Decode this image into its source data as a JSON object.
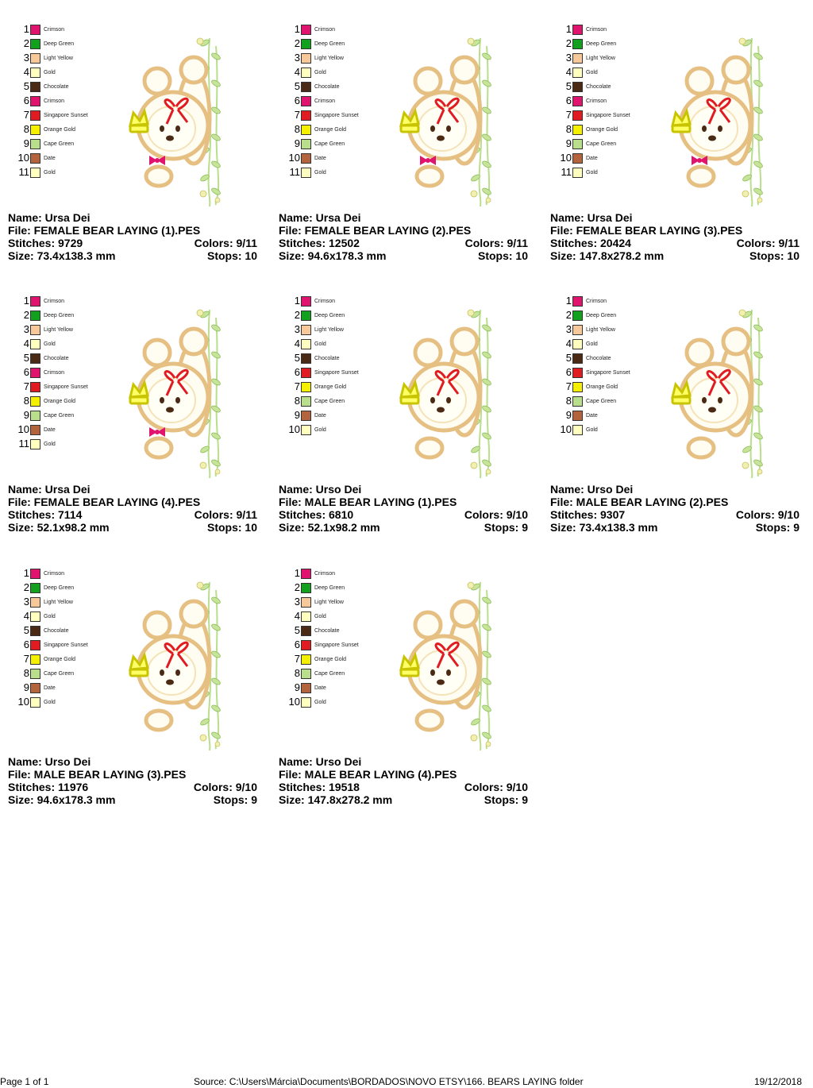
{
  "palette": {
    "Crimson": "#e0146e",
    "Deep Green": "#12a01f",
    "Light Yellow": "#f7c99a",
    "Gold": "#ffffc0",
    "Chocolate": "#4a2a14",
    "Singapore Sunset": "#e01b22",
    "Orange Gold": "#f5f000",
    "Cape Green": "#b9de8c",
    "Date": "#b3643c"
  },
  "designs": [
    {
      "gender": "female",
      "name_label": "Name: Ursa Dei",
      "file_label": "File: FEMALE BEAR LAYING (1).PES",
      "stitches_label": "Stitches: 9729",
      "colors_label": "Colors: 9/11",
      "size_label": "Size: 73.4x138.3 mm",
      "stops_label": "Stops: 10",
      "color_list": [
        {
          "num": "1",
          "name": "Crimson"
        },
        {
          "num": "2",
          "name": "Deep Green"
        },
        {
          "num": "3",
          "name": "Light Yellow"
        },
        {
          "num": "4",
          "name": "Gold"
        },
        {
          "num": "5",
          "name": "Chocolate"
        },
        {
          "num": "6",
          "name": "Crimson"
        },
        {
          "num": "7",
          "name": "Singapore Sunset"
        },
        {
          "num": "8",
          "name": "Orange Gold"
        },
        {
          "num": "9",
          "name": "Cape Green"
        },
        {
          "num": "10",
          "name": "Date"
        },
        {
          "num": "11",
          "name": "Gold"
        }
      ]
    },
    {
      "gender": "female",
      "name_label": "Name: Ursa Dei",
      "file_label": "File: FEMALE BEAR LAYING (2).PES",
      "stitches_label": "Stitches: 12502",
      "colors_label": "Colors: 9/11",
      "size_label": "Size: 94.6x178.3 mm",
      "stops_label": "Stops: 10",
      "color_list": [
        {
          "num": "1",
          "name": "Crimson"
        },
        {
          "num": "2",
          "name": "Deep Green"
        },
        {
          "num": "3",
          "name": "Light Yellow"
        },
        {
          "num": "4",
          "name": "Gold"
        },
        {
          "num": "5",
          "name": "Chocolate"
        },
        {
          "num": "6",
          "name": "Crimson"
        },
        {
          "num": "7",
          "name": "Singapore Sunset"
        },
        {
          "num": "8",
          "name": "Orange Gold"
        },
        {
          "num": "9",
          "name": "Cape Green"
        },
        {
          "num": "10",
          "name": "Date"
        },
        {
          "num": "11",
          "name": "Gold"
        }
      ]
    },
    {
      "gender": "female",
      "name_label": "Name: Ursa Dei",
      "file_label": "File: FEMALE BEAR LAYING (3).PES",
      "stitches_label": "Stitches: 20424",
      "colors_label": "Colors: 9/11",
      "size_label": "Size: 147.8x278.2 mm",
      "stops_label": "Stops: 10",
      "color_list": [
        {
          "num": "1",
          "name": "Crimson"
        },
        {
          "num": "2",
          "name": "Deep Green"
        },
        {
          "num": "3",
          "name": "Light Yellow"
        },
        {
          "num": "4",
          "name": "Gold"
        },
        {
          "num": "5",
          "name": "Chocolate"
        },
        {
          "num": "6",
          "name": "Crimson"
        },
        {
          "num": "7",
          "name": "Singapore Sunset"
        },
        {
          "num": "8",
          "name": "Orange Gold"
        },
        {
          "num": "9",
          "name": "Cape Green"
        },
        {
          "num": "10",
          "name": "Date"
        },
        {
          "num": "11",
          "name": "Gold"
        }
      ]
    },
    {
      "gender": "female",
      "name_label": "Name: Ursa Dei",
      "file_label": "File: FEMALE BEAR LAYING (4).PES",
      "stitches_label": "Stitches: 7114",
      "colors_label": "Colors: 9/11",
      "size_label": "Size: 52.1x98.2 mm",
      "stops_label": "Stops: 10",
      "color_list": [
        {
          "num": "1",
          "name": "Crimson"
        },
        {
          "num": "2",
          "name": "Deep Green"
        },
        {
          "num": "3",
          "name": "Light Yellow"
        },
        {
          "num": "4",
          "name": "Gold"
        },
        {
          "num": "5",
          "name": "Chocolate"
        },
        {
          "num": "6",
          "name": "Crimson"
        },
        {
          "num": "7",
          "name": "Singapore Sunset"
        },
        {
          "num": "8",
          "name": "Orange Gold"
        },
        {
          "num": "9",
          "name": "Cape Green"
        },
        {
          "num": "10",
          "name": "Date"
        },
        {
          "num": "11",
          "name": "Gold"
        }
      ]
    },
    {
      "gender": "male",
      "name_label": "Name: Urso Dei",
      "file_label": "File: MALE BEAR LAYING (1).PES",
      "stitches_label": "Stitches: 6810",
      "colors_label": "Colors: 9/10",
      "size_label": "Size: 52.1x98.2 mm",
      "stops_label": "Stops: 9",
      "color_list": [
        {
          "num": "1",
          "name": "Crimson"
        },
        {
          "num": "2",
          "name": "Deep Green"
        },
        {
          "num": "3",
          "name": "Light Yellow"
        },
        {
          "num": "4",
          "name": "Gold"
        },
        {
          "num": "5",
          "name": "Chocolate"
        },
        {
          "num": "6",
          "name": "Singapore Sunset"
        },
        {
          "num": "7",
          "name": "Orange Gold"
        },
        {
          "num": "8",
          "name": "Cape Green"
        },
        {
          "num": "9",
          "name": "Date"
        },
        {
          "num": "10",
          "name": "Gold"
        }
      ]
    },
    {
      "gender": "male",
      "name_label": "Name: Urso Dei",
      "file_label": "File: MALE BEAR LAYING (2).PES",
      "stitches_label": "Stitches: 9307",
      "colors_label": "Colors: 9/10",
      "size_label": "Size: 73.4x138.3 mm",
      "stops_label": "Stops: 9",
      "color_list": [
        {
          "num": "1",
          "name": "Crimson"
        },
        {
          "num": "2",
          "name": "Deep Green"
        },
        {
          "num": "3",
          "name": "Light Yellow"
        },
        {
          "num": "4",
          "name": "Gold"
        },
        {
          "num": "5",
          "name": "Chocolate"
        },
        {
          "num": "6",
          "name": "Singapore Sunset"
        },
        {
          "num": "7",
          "name": "Orange Gold"
        },
        {
          "num": "8",
          "name": "Cape Green"
        },
        {
          "num": "9",
          "name": "Date"
        },
        {
          "num": "10",
          "name": "Gold"
        }
      ]
    },
    {
      "gender": "male",
      "name_label": "Name: Urso Dei",
      "file_label": "File: MALE BEAR LAYING (3).PES",
      "stitches_label": "Stitches: 11976",
      "colors_label": "Colors: 9/10",
      "size_label": "Size: 94.6x178.3 mm",
      "stops_label": "Stops: 9",
      "color_list": [
        {
          "num": "1",
          "name": "Crimson"
        },
        {
          "num": "2",
          "name": "Deep Green"
        },
        {
          "num": "3",
          "name": "Light Yellow"
        },
        {
          "num": "4",
          "name": "Gold"
        },
        {
          "num": "5",
          "name": "Chocolate"
        },
        {
          "num": "6",
          "name": "Singapore Sunset"
        },
        {
          "num": "7",
          "name": "Orange Gold"
        },
        {
          "num": "8",
          "name": "Cape Green"
        },
        {
          "num": "9",
          "name": "Date"
        },
        {
          "num": "10",
          "name": "Gold"
        }
      ]
    },
    {
      "gender": "male",
      "name_label": "Name: Urso Dei",
      "file_label": "File: MALE BEAR LAYING (4).PES",
      "stitches_label": "Stitches: 19518",
      "colors_label": "Colors: 9/10",
      "size_label": "Size: 147.8x278.2 mm",
      "stops_label": "Stops: 9",
      "color_list": [
        {
          "num": "1",
          "name": "Crimson"
        },
        {
          "num": "2",
          "name": "Deep Green"
        },
        {
          "num": "3",
          "name": "Light Yellow"
        },
        {
          "num": "4",
          "name": "Gold"
        },
        {
          "num": "5",
          "name": "Chocolate"
        },
        {
          "num": "6",
          "name": "Singapore Sunset"
        },
        {
          "num": "7",
          "name": "Orange Gold"
        },
        {
          "num": "8",
          "name": "Cape Green"
        },
        {
          "num": "9",
          "name": "Date"
        },
        {
          "num": "10",
          "name": "Gold"
        }
      ]
    }
  ],
  "footer": {
    "page": "Page 1 of 1",
    "source": "Source:  C:\\Users\\Márcia\\Documents\\BORDADOS\\NOVO ETSY\\166. BEARS LAYING folder",
    "date": "19/12/2018"
  }
}
